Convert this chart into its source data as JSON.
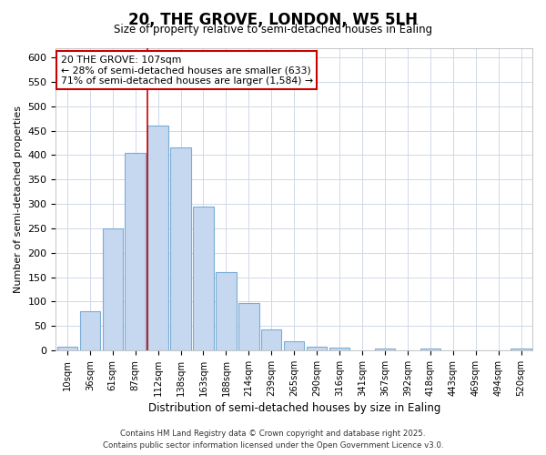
{
  "title": "20, THE GROVE, LONDON, W5 5LH",
  "subtitle": "Size of property relative to semi-detached houses in Ealing",
  "xlabel": "Distribution of semi-detached houses by size in Ealing",
  "ylabel": "Number of semi-detached properties",
  "bar_labels": [
    "10sqm",
    "36sqm",
    "61sqm",
    "87sqm",
    "112sqm",
    "138sqm",
    "163sqm",
    "188sqm",
    "214sqm",
    "239sqm",
    "265sqm",
    "290sqm",
    "316sqm",
    "341sqm",
    "367sqm",
    "392sqm",
    "418sqm",
    "443sqm",
    "469sqm",
    "494sqm",
    "520sqm"
  ],
  "bar_values": [
    8,
    80,
    250,
    405,
    460,
    415,
    295,
    160,
    97,
    42,
    18,
    7,
    5,
    0,
    4,
    0,
    3,
    0,
    0,
    0,
    4
  ],
  "bar_color": "#c5d8f0",
  "bar_edge_color": "#7aadd4",
  "red_line_index": 4,
  "ylim": [
    0,
    620
  ],
  "yticks": [
    0,
    50,
    100,
    150,
    200,
    250,
    300,
    350,
    400,
    450,
    500,
    550,
    600
  ],
  "annotation_title": "20 THE GROVE: 107sqm",
  "annotation_line1": "← 28% of semi-detached houses are smaller (633)",
  "annotation_line2": "71% of semi-detached houses are larger (1,584) →",
  "annotation_box_facecolor": "#ffffff",
  "annotation_box_edgecolor": "#cc0000",
  "red_line_color": "#cc0000",
  "fig_background": "#ffffff",
  "plot_background": "#ffffff",
  "grid_color": "#d0d8e8",
  "footer_line1": "Contains HM Land Registry data © Crown copyright and database right 2025.",
  "footer_line2": "Contains public sector information licensed under the Open Government Licence v3.0."
}
